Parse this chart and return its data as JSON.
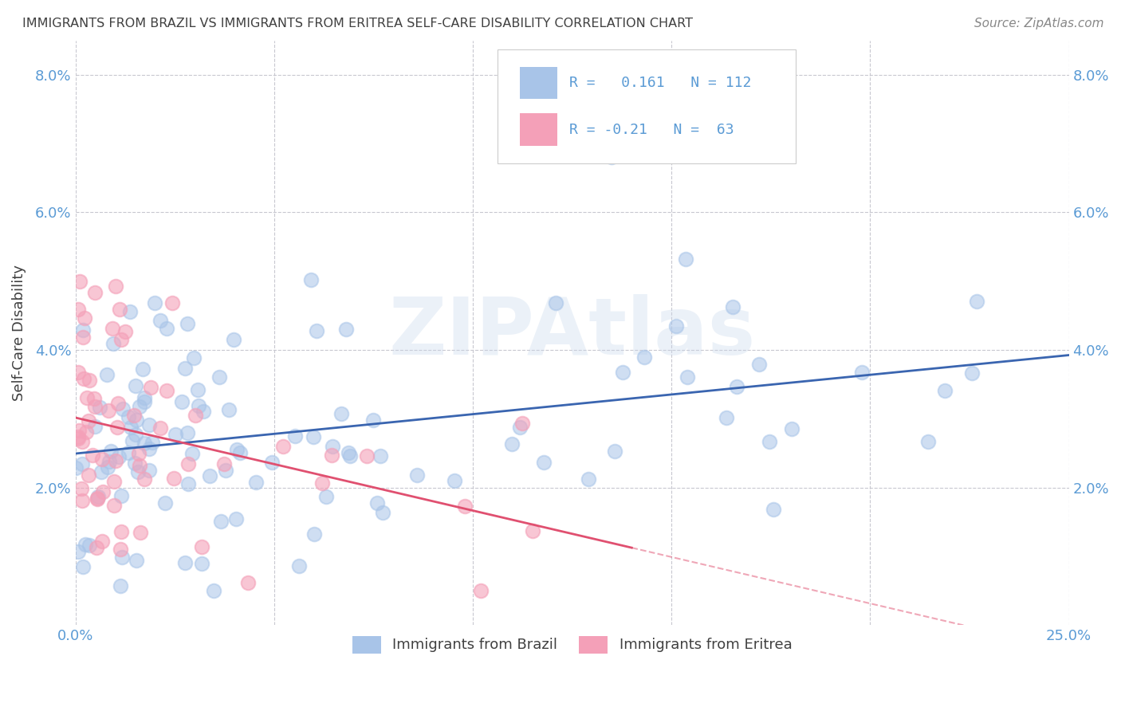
{
  "title": "IMMIGRANTS FROM BRAZIL VS IMMIGRANTS FROM ERITREA SELF-CARE DISABILITY CORRELATION CHART",
  "source": "Source: ZipAtlas.com",
  "ylabel": "Self-Care Disability",
  "xlim": [
    0.0,
    0.25
  ],
  "ylim": [
    0.0,
    0.085
  ],
  "ytick_vals": [
    0.0,
    0.02,
    0.04,
    0.06,
    0.08
  ],
  "ytick_labels": [
    "",
    "2.0%",
    "4.0%",
    "6.0%",
    "8.0%"
  ],
  "xtick_vals": [
    0.0,
    0.05,
    0.1,
    0.15,
    0.2,
    0.25
  ],
  "xtick_labels": [
    "0.0%",
    "",
    "",
    "",
    "",
    "25.0%"
  ],
  "brazil_color": "#a8c4e8",
  "eritrea_color": "#f4a0b8",
  "brazil_R": 0.161,
  "brazil_N": 112,
  "eritrea_R": -0.21,
  "eritrea_N": 63,
  "brazil_line_color": "#3a65b0",
  "eritrea_line_color": "#e05070",
  "watermark": "ZIPAtlas",
  "legend_label_brazil": "Immigrants from Brazil",
  "legend_label_eritrea": "Immigrants from Eritrea",
  "background_color": "#ffffff",
  "grid_color": "#c8c8d0",
  "tick_color": "#5b9bd5",
  "title_color": "#404040",
  "source_color": "#888888",
  "ylabel_color": "#404040"
}
